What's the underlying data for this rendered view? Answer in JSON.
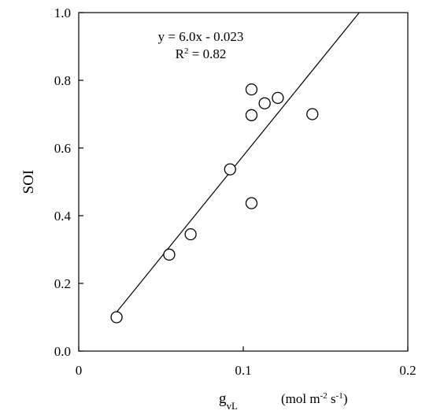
{
  "chart_data": {
    "type": "scatter",
    "title": "",
    "xlabel": {
      "symbol": "g",
      "subscript": "vL",
      "unit_prefix": "(mol m",
      "unit_exp1": "-2",
      "unit_mid": " s",
      "unit_exp2": "-1",
      "unit_suffix": ")"
    },
    "ylabel": "SOI",
    "xlim": [
      0,
      0.2
    ],
    "ylim": [
      0.0,
      1.0
    ],
    "x_ticks": [
      "0",
      "0.1",
      "0.2"
    ],
    "y_ticks": [
      "0.0",
      "0.2",
      "0.4",
      "0.6",
      "0.8",
      "1.0"
    ],
    "x_tick_values": [
      0,
      0.1,
      0.2
    ],
    "y_tick_values": [
      0.0,
      0.2,
      0.4,
      0.6,
      0.8,
      1.0
    ],
    "grid": false,
    "series": [
      {
        "x": [
          0.023,
          0.055,
          0.068,
          0.092,
          0.105,
          0.105,
          0.105,
          0.113,
          0.121,
          0.142
        ],
        "y": [
          0.1,
          0.285,
          0.345,
          0.537,
          0.437,
          0.697,
          0.773,
          0.732,
          0.748,
          0.7
        ]
      }
    ],
    "trendline": {
      "slope": 6.0,
      "intercept": -0.023,
      "equation": "y = 6.0x - 0.023",
      "r2_prefix": "R",
      "r2_exp": "2",
      "r2_suffix": " = 0.82"
    },
    "colors": {
      "marker_stroke": "#000000",
      "marker_fill": "#ffffff",
      "line": "#000000"
    }
  }
}
